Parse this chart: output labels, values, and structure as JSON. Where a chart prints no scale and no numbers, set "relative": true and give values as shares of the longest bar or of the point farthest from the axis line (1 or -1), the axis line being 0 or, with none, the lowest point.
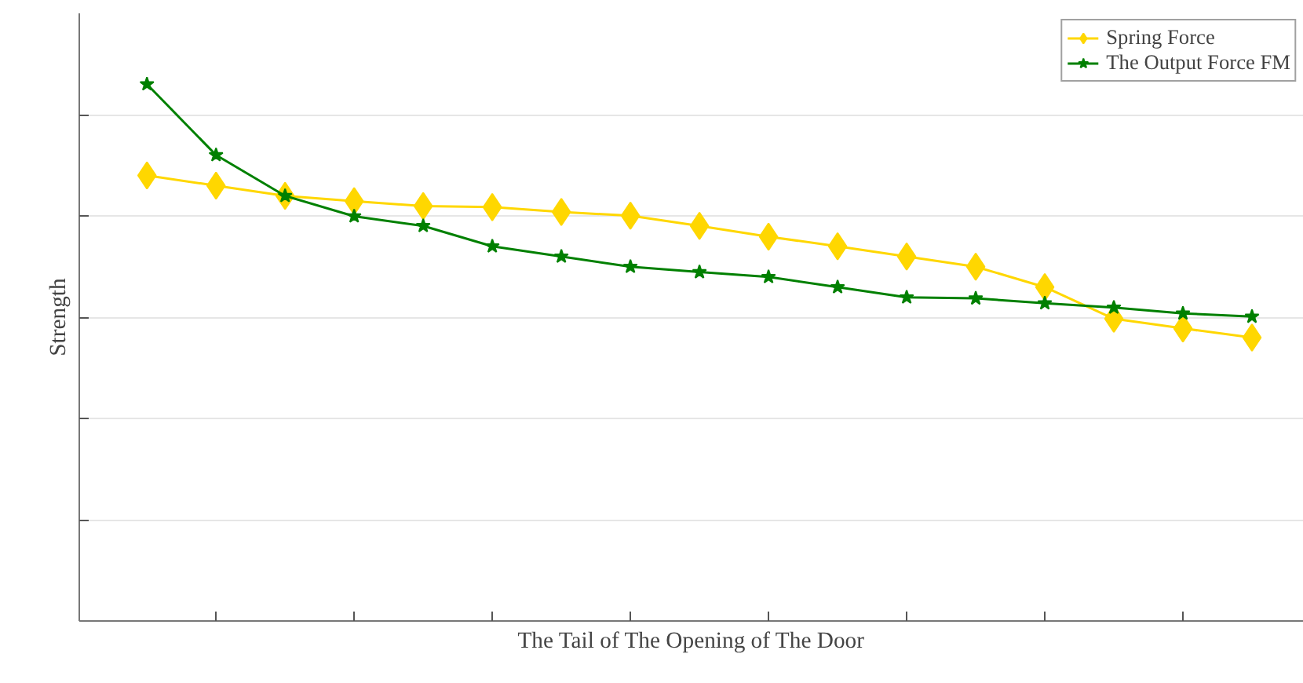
{
  "chart_data": {
    "type": "line",
    "relative": true,
    "xlabel": "The Tail of The Opening of The Door",
    "ylabel": "Strength",
    "categories": [
      null,
      null,
      null,
      null,
      null,
      null,
      null,
      null,
      null,
      null,
      null,
      null,
      null,
      null,
      null,
      null,
      null
    ],
    "grid": "y",
    "legend": "top right",
    "series": [
      {
        "name": "Spring Force",
        "color": "#ffd700",
        "marker": "diamond",
        "values": [
          0.83,
          0.811,
          0.792,
          0.782,
          0.773,
          0.771,
          0.762,
          0.755,
          0.736,
          0.716,
          0.698,
          0.679,
          0.66,
          0.622,
          0.563,
          0.545,
          0.528
        ]
      },
      {
        "name": "The Output Force FM",
        "color": "#008000",
        "marker": "star",
        "values": [
          1,
          0.868,
          0.792,
          0.754,
          0.736,
          0.698,
          0.679,
          0.66,
          0.65,
          0.641,
          0.622,
          0.603,
          0.601,
          0.592,
          0.584,
          0.573,
          0.567
        ]
      }
    ]
  }
}
